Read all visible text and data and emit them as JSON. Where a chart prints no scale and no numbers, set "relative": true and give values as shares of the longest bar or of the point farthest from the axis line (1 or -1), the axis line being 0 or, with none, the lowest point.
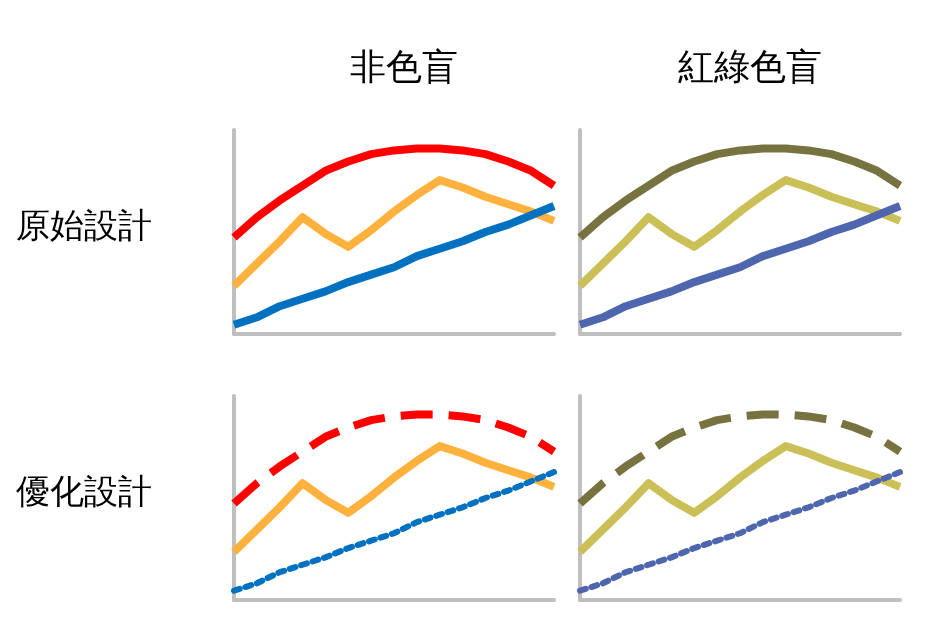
{
  "chart_data": [
    {
      "type": "line",
      "title": "非色盲",
      "ylabel": "原始設計",
      "relative": true,
      "marker": "none",
      "grid": false,
      "categories": [
        null,
        null,
        null,
        null,
        null,
        null,
        null,
        null,
        null,
        null,
        null,
        null,
        null,
        null,
        null
      ],
      "series": [
        {
          "color": "#ff0000",
          "line_style": "solid",
          "values": [
            0.52,
            0.63,
            0.72,
            0.8,
            0.88,
            0.93,
            0.97,
            0.99,
            1,
            1,
            0.99,
            0.97,
            0.93,
            0.88,
            0.8
          ]
        },
        {
          "color": "#ffb13d",
          "line_style": "solid",
          "values": [
            0.26,
            0.38,
            0.5,
            0.63,
            0.54,
            0.47,
            0.56,
            0.66,
            0.75,
            0.83,
            0.79,
            0.74,
            0.7,
            0.66,
            0.61
          ]
        },
        {
          "color": "#0070c0",
          "line_style": "solid",
          "values": [
            0.05,
            0.09,
            0.15,
            0.19,
            0.23,
            0.28,
            0.32,
            0.36,
            0.42,
            0.46,
            0.5,
            0.55,
            0.59,
            0.64,
            0.69
          ]
        }
      ]
    },
    {
      "type": "line",
      "title": "紅綠色盲",
      "relative": true,
      "marker": "none",
      "grid": false,
      "categories": [
        null,
        null,
        null,
        null,
        null,
        null,
        null,
        null,
        null,
        null,
        null,
        null,
        null,
        null,
        null
      ],
      "series": [
        {
          "color": "#777340",
          "line_style": "solid",
          "values": [
            0.52,
            0.63,
            0.72,
            0.8,
            0.88,
            0.93,
            0.97,
            0.99,
            1,
            1,
            0.99,
            0.97,
            0.93,
            0.88,
            0.8
          ]
        },
        {
          "color": "#cbbf58",
          "line_style": "solid",
          "values": [
            0.26,
            0.38,
            0.5,
            0.63,
            0.54,
            0.47,
            0.56,
            0.66,
            0.75,
            0.83,
            0.79,
            0.74,
            0.7,
            0.66,
            0.61
          ]
        },
        {
          "color": "#4e66ad",
          "line_style": "solid",
          "values": [
            0.05,
            0.09,
            0.15,
            0.19,
            0.23,
            0.28,
            0.32,
            0.36,
            0.42,
            0.46,
            0.5,
            0.55,
            0.59,
            0.64,
            0.69
          ]
        }
      ]
    },
    {
      "type": "line",
      "ylabel": "優化設計",
      "relative": true,
      "marker": "none",
      "grid": false,
      "categories": [
        null,
        null,
        null,
        null,
        null,
        null,
        null,
        null,
        null,
        null,
        null,
        null,
        null,
        null,
        null
      ],
      "series": [
        {
          "color": "#ff0000",
          "line_style": "dashed",
          "values": [
            0.52,
            0.63,
            0.72,
            0.8,
            0.88,
            0.93,
            0.97,
            0.99,
            1,
            1,
            0.99,
            0.97,
            0.93,
            0.88,
            0.8
          ]
        },
        {
          "color": "#ffb13d",
          "line_style": "solid",
          "values": [
            0.26,
            0.38,
            0.5,
            0.63,
            0.54,
            0.47,
            0.56,
            0.66,
            0.75,
            0.83,
            0.79,
            0.74,
            0.7,
            0.66,
            0.61
          ]
        },
        {
          "color": "#0070c0",
          "line_style": "dotted",
          "values": [
            0.05,
            0.09,
            0.15,
            0.19,
            0.23,
            0.28,
            0.32,
            0.36,
            0.42,
            0.46,
            0.5,
            0.55,
            0.59,
            0.64,
            0.69
          ]
        }
      ]
    },
    {
      "type": "line",
      "relative": true,
      "marker": "none",
      "grid": false,
      "categories": [
        null,
        null,
        null,
        null,
        null,
        null,
        null,
        null,
        null,
        null,
        null,
        null,
        null,
        null,
        null
      ],
      "series": [
        {
          "color": "#777340",
          "line_style": "dashed",
          "values": [
            0.52,
            0.63,
            0.72,
            0.8,
            0.88,
            0.93,
            0.97,
            0.99,
            1,
            1,
            0.99,
            0.97,
            0.93,
            0.88,
            0.8
          ]
        },
        {
          "color": "#cbbf58",
          "line_style": "solid",
          "values": [
            0.26,
            0.38,
            0.5,
            0.63,
            0.54,
            0.47,
            0.56,
            0.66,
            0.75,
            0.83,
            0.79,
            0.74,
            0.7,
            0.66,
            0.61
          ]
        },
        {
          "color": "#4e66ad",
          "line_style": "dotted",
          "values": [
            0.05,
            0.09,
            0.15,
            0.19,
            0.23,
            0.28,
            0.32,
            0.36,
            0.42,
            0.46,
            0.5,
            0.55,
            0.59,
            0.64,
            0.69
          ]
        }
      ]
    }
  ]
}
